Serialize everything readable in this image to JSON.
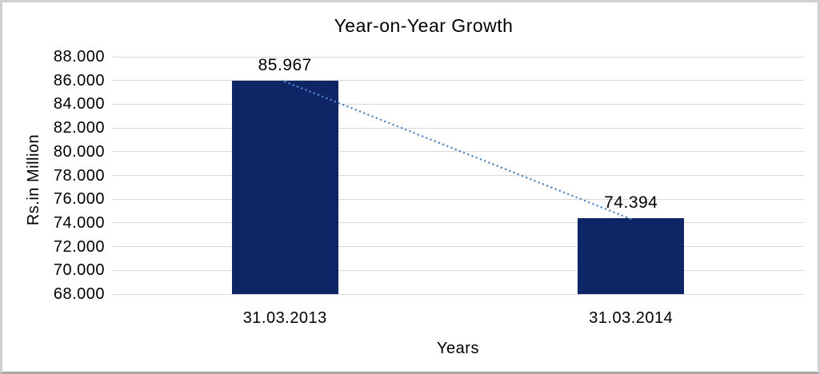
{
  "window": {
    "background": "#ffffff",
    "frame_border_color": "#d0d0d0"
  },
  "chart_data": {
    "type": "bar",
    "title": "Year-on-Year Growth",
    "xlabel": "Years",
    "ylabel": "Rs.in Million",
    "categories": [
      "31.03.2013",
      "31.03.2014"
    ],
    "values": [
      85.967,
      74.394
    ],
    "data_labels": [
      "85.967",
      "74.394"
    ],
    "ylim": [
      68.0,
      88.0
    ],
    "ytick_step": 2.0,
    "ytick_labels": [
      "88.000",
      "86.000",
      "84.000",
      "82.000",
      "80.000",
      "78.000",
      "76.000",
      "74.000",
      "72.000",
      "70.000",
      "68.000"
    ],
    "grid": "horizontal-gridlines",
    "legend": "none",
    "bar_color": "#0e2666",
    "gridline_color": "#d9d9d9",
    "text_color": "#000000",
    "trendline": {
      "style": "dotted",
      "color": "#4e86c8",
      "from_value": 85.967,
      "to_value": 74.394
    }
  }
}
